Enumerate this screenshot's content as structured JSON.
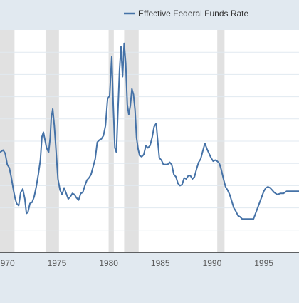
{
  "chart_data": {
    "type": "line",
    "title": "",
    "xlabel": "",
    "ylabel": "",
    "legend": {
      "placement": "top-center",
      "label": "Effective Federal Funds Rate"
    },
    "grid": true,
    "colors": {
      "background": "#e1e9f0",
      "plot_background": "#ffffff",
      "grid": "#e1e9f0",
      "line": "#4572a7",
      "recession": "#e1e1e1",
      "tick_text": "#595959",
      "legend_text": "#333333"
    },
    "xlim": [
      1969.5,
      1998.4
    ],
    "ylim": [
      0,
      20
    ],
    "x_ticks": [
      {
        "value": 1970,
        "label": "1970"
      },
      {
        "value": 1975,
        "label": "1975"
      },
      {
        "value": 1980,
        "label": "1980"
      },
      {
        "value": 1985,
        "label": "1985"
      },
      {
        "value": 1990,
        "label": "1990"
      },
      {
        "value": 1995,
        "label": "1995"
      }
    ],
    "y_gridlines": [
      2,
      4,
      6,
      8,
      10,
      12,
      14,
      16,
      18
    ],
    "recessions": [
      [
        1969.5,
        1970.9
      ],
      [
        1973.9,
        1975.2
      ],
      [
        1980.0,
        1980.5
      ],
      [
        1981.5,
        1982.9
      ],
      [
        1990.5,
        1991.2
      ]
    ],
    "series": [
      {
        "name": "Effective Federal Funds Rate",
        "x": [
          1969.5,
          1969.8,
          1970.0,
          1970.2,
          1970.4,
          1970.6,
          1970.8,
          1970.95,
          1971.1,
          1971.3,
          1971.5,
          1971.7,
          1971.9,
          1972.05,
          1972.2,
          1972.4,
          1972.6,
          1972.8,
          1973.0,
          1973.2,
          1973.4,
          1973.55,
          1973.7,
          1973.85,
          1974.0,
          1974.2,
          1974.35,
          1974.45,
          1974.6,
          1974.75,
          1974.9,
          1975.1,
          1975.3,
          1975.5,
          1975.7,
          1975.9,
          1976.1,
          1976.3,
          1976.5,
          1976.7,
          1976.9,
          1977.1,
          1977.3,
          1977.5,
          1977.7,
          1977.9,
          1978.1,
          1978.3,
          1978.5,
          1978.7,
          1978.9,
          1979.1,
          1979.3,
          1979.5,
          1979.7,
          1979.9,
          1980.1,
          1980.3,
          1980.45,
          1980.6,
          1980.75,
          1980.9,
          1981.05,
          1981.2,
          1981.35,
          1981.5,
          1981.65,
          1981.8,
          1981.95,
          1982.1,
          1982.25,
          1982.4,
          1982.55,
          1982.7,
          1982.85,
          1983.0,
          1983.2,
          1983.4,
          1983.6,
          1983.8,
          1984.0,
          1984.2,
          1984.4,
          1984.6,
          1984.75,
          1984.9,
          1985.1,
          1985.3,
          1985.5,
          1985.7,
          1985.9,
          1986.1,
          1986.3,
          1986.5,
          1986.7,
          1986.9,
          1987.1,
          1987.3,
          1987.5,
          1987.7,
          1987.9,
          1988.1,
          1988.3,
          1988.5,
          1988.7,
          1988.9,
          1989.1,
          1989.3,
          1989.5,
          1989.7,
          1989.9,
          1990.1,
          1990.3,
          1990.5,
          1990.7,
          1990.9,
          1991.1,
          1991.3,
          1991.5,
          1991.7,
          1991.9,
          1992.1,
          1992.3,
          1992.5,
          1992.7,
          1992.9,
          1993.2,
          1993.5,
          1993.8,
          1994.0,
          1994.2,
          1994.4,
          1994.6,
          1994.8,
          1995.0,
          1995.2,
          1995.4,
          1995.6,
          1995.8,
          1996.0,
          1996.3,
          1996.6,
          1996.9,
          1997.2,
          1997.5,
          1997.8,
          1998.1,
          1998.4
        ],
        "values": [
          9.0,
          9.2,
          8.9,
          7.9,
          7.6,
          6.7,
          5.6,
          4.9,
          4.4,
          4.2,
          5.4,
          5.7,
          4.8,
          3.5,
          3.6,
          4.4,
          4.5,
          5.0,
          5.9,
          7.0,
          8.3,
          10.4,
          10.8,
          10.1,
          9.4,
          9.0,
          10.3,
          12.0,
          12.9,
          11.4,
          9.4,
          6.6,
          5.6,
          5.2,
          5.8,
          5.3,
          4.8,
          5.0,
          5.3,
          5.2,
          4.9,
          4.7,
          5.3,
          5.4,
          6.0,
          6.5,
          6.7,
          7.0,
          7.7,
          8.4,
          9.9,
          10.1,
          10.2,
          10.5,
          11.4,
          13.8,
          14.1,
          17.6,
          13.2,
          9.4,
          9.0,
          12.8,
          16.4,
          18.5,
          15.8,
          18.8,
          17.0,
          13.3,
          12.4,
          13.2,
          14.7,
          14.2,
          12.8,
          10.3,
          9.3,
          8.7,
          8.6,
          8.8,
          9.6,
          9.4,
          9.6,
          10.3,
          11.3,
          11.6,
          10.0,
          8.5,
          8.3,
          7.9,
          7.9,
          7.9,
          8.1,
          7.9,
          7.0,
          6.8,
          6.2,
          6.0,
          6.1,
          6.7,
          6.6,
          6.9,
          6.9,
          6.6,
          6.8,
          7.5,
          8.1,
          8.4,
          9.1,
          9.8,
          9.3,
          8.9,
          8.5,
          8.2,
          8.3,
          8.2,
          8.0,
          7.4,
          6.6,
          5.9,
          5.6,
          5.2,
          4.6,
          4.0,
          3.7,
          3.3,
          3.2,
          3.0,
          3.0,
          3.0,
          3.0,
          3.0,
          3.5,
          4.0,
          4.5,
          5.0,
          5.5,
          5.8,
          5.9,
          5.8,
          5.6,
          5.4,
          5.2,
          5.3,
          5.3,
          5.5,
          5.5,
          5.5,
          5.5,
          5.5
        ]
      }
    ]
  }
}
